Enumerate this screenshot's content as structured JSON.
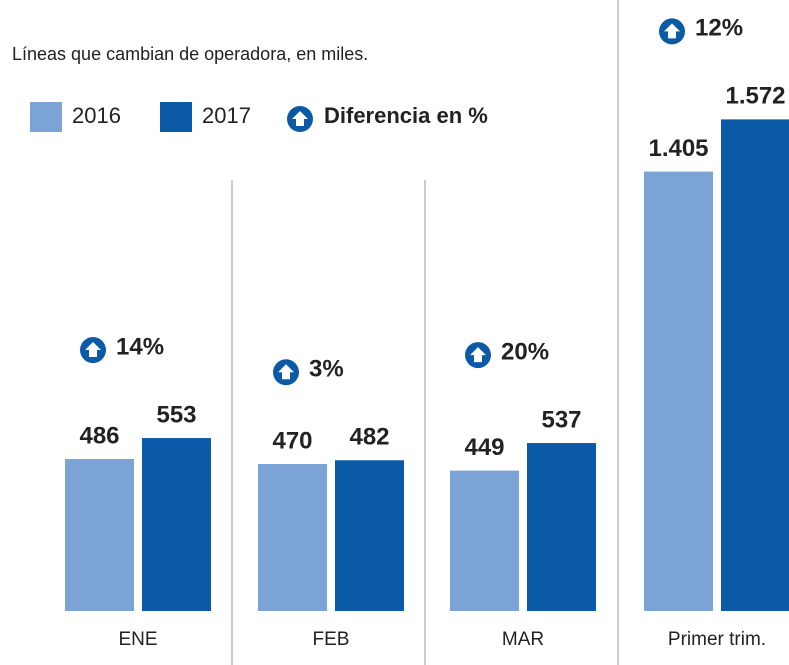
{
  "chart_data": {
    "type": "bar",
    "title": "Líneas que cambian de operadora, en miles.",
    "categories": [
      "ENE",
      "FEB",
      "MAR",
      "Primer trim."
    ],
    "series": [
      {
        "name": "2016",
        "color": "#7ba3d6",
        "values": [
          486,
          470,
          449,
          1405
        ],
        "value_labels": [
          "486",
          "470",
          "449",
          "1.405"
        ]
      },
      {
        "name": "2017",
        "color": "#0b5aa8",
        "values": [
          553,
          482,
          537,
          1572
        ],
        "value_labels": [
          "553",
          "482",
          "537",
          "1.572"
        ]
      }
    ],
    "difference_legend": "Diferencia en %",
    "difference_labels": [
      "14%",
      "3%",
      "20%",
      "12%"
    ],
    "ylim": [
      0,
      1650
    ]
  }
}
